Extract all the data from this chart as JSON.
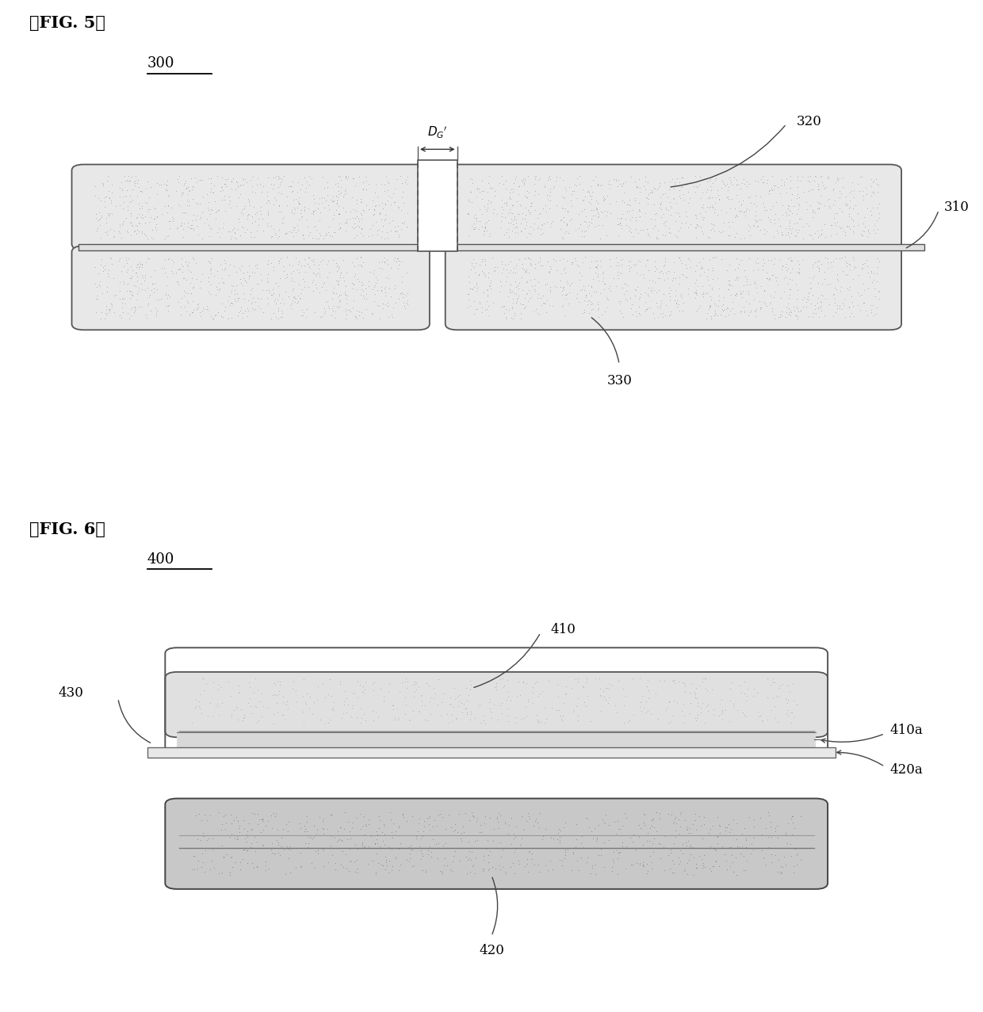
{
  "bg_color": "#ffffff",
  "fig_width": 12.4,
  "fig_height": 12.77,
  "fig5_label": "』FIG. 5【",
  "fig6_label": "』FIG. 6【",
  "label_300": "300",
  "label_310": "310",
  "label_320": "320",
  "label_330": "330",
  "label_400": "400",
  "label_410": "410",
  "label_410a": "410a",
  "label_420": "420",
  "label_420a": "420a",
  "label_430": "430",
  "ec_light": "#cccccc",
  "ec_stipple": "#c8c8c8",
  "ec_dark": "#aaaaaa",
  "cc_color": "#e0e0e0",
  "line_color": "#555555",
  "text_color": "#000000",
  "white": "#ffffff"
}
